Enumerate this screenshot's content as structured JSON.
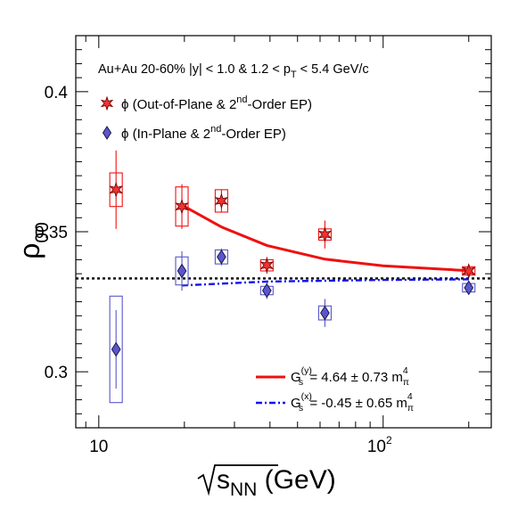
{
  "chart_data": {
    "type": "scatter",
    "annotation": "Au+Au 20-60%  |y| < 1.0 & 1.2 < p_T < 5.4 GeV/c",
    "ylabel": "ρ_00",
    "xlabel": "√s_NN  (GeV)",
    "x_scale": "log",
    "xlim": [
      8.3,
      240
    ],
    "ylim": [
      0.28,
      0.42
    ],
    "x_tick_labels": [
      "10",
      "10²"
    ],
    "y_tick_labels": [
      "0.3",
      "0.35",
      "0.4"
    ],
    "reference_line": {
      "y": 0.3333,
      "style": "dotted",
      "color": "#000000"
    },
    "series": [
      {
        "name": "ϕ (Out-of-Plane & 2nd-Order EP)",
        "marker": "star",
        "color": "#ee1111",
        "points": [
          {
            "x": 11.5,
            "y": 0.365,
            "stat_err": 0.014,
            "sys_err": 0.006
          },
          {
            "x": 19.6,
            "y": 0.359,
            "stat_err": 0.008,
            "sys_err": 0.007
          },
          {
            "x": 27.0,
            "y": 0.361,
            "stat_err": 0.004,
            "sys_err": 0.004
          },
          {
            "x": 39.0,
            "y": 0.338,
            "stat_err": 0.003,
            "sys_err": 0.002
          },
          {
            "x": 62.4,
            "y": 0.349,
            "stat_err": 0.005,
            "sys_err": 0.002
          },
          {
            "x": 200.0,
            "y": 0.336,
            "stat_err": 0.002,
            "sys_err": 0.0015
          }
        ]
      },
      {
        "name": "ϕ (In-Plane & 2nd-Order EP)",
        "marker": "diamond",
        "color": "#5555cc",
        "points": [
          {
            "x": 11.5,
            "y": 0.308,
            "stat_err": 0.014,
            "sys_err": 0.019
          },
          {
            "x": 19.6,
            "y": 0.336,
            "stat_err": 0.007,
            "sys_err": 0.005
          },
          {
            "x": 27.0,
            "y": 0.341,
            "stat_err": 0.003,
            "sys_err": 0.0025
          },
          {
            "x": 39.0,
            "y": 0.329,
            "stat_err": 0.003,
            "sys_err": 0.0015
          },
          {
            "x": 62.4,
            "y": 0.321,
            "stat_err": 0.005,
            "sys_err": 0.0025
          },
          {
            "x": 200.0,
            "y": 0.33,
            "stat_err": 0.002,
            "sys_err": 0.0015
          }
        ]
      }
    ],
    "fit_curves": [
      {
        "label": "G_s^(y) = 4.64 ± 0.73 m_π^4",
        "color": "#ee1111",
        "style": "solid",
        "points": [
          [
            19.6,
            0.3595
          ],
          [
            27,
            0.3517
          ],
          [
            39,
            0.3451
          ],
          [
            62.4,
            0.3402
          ],
          [
            100,
            0.3378
          ],
          [
            200,
            0.3361
          ]
        ]
      },
      {
        "label": "G_s^(x) = -0.45 ± 0.65 m_π^4",
        "color": "#1111ee",
        "style": "dash-dot",
        "points": [
          [
            19.6,
            0.3308
          ],
          [
            39,
            0.3322
          ],
          [
            100,
            0.3328
          ],
          [
            200,
            0.333
          ]
        ]
      }
    ]
  }
}
